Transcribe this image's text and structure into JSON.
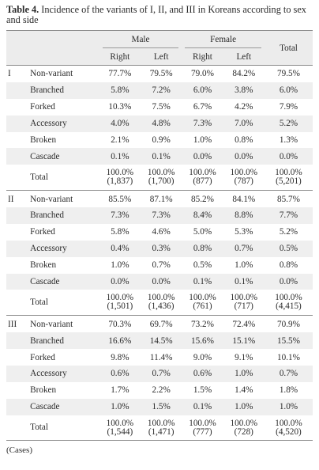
{
  "caption": {
    "label": "Table 4.",
    "text": " Incidence of the variants of I, II, and III in Koreans according to sex and side"
  },
  "headers": {
    "male": "Male",
    "female": "Female",
    "total": "Total",
    "right": "Right",
    "left": "Left"
  },
  "sections": [
    {
      "label": "I",
      "rows": [
        {
          "variant": "Non-variant",
          "m_right": "77.7%",
          "m_left": "79.5%",
          "f_right": "79.0%",
          "f_left": "84.2%",
          "total": "79.5%"
        },
        {
          "variant": "Branched",
          "m_right": "5.8%",
          "m_left": "7.2%",
          "f_right": "6.0%",
          "f_left": "3.8%",
          "total": "6.0%"
        },
        {
          "variant": "Forked",
          "m_right": "10.3%",
          "m_left": "7.5%",
          "f_right": "6.7%",
          "f_left": "4.2%",
          "total": "7.9%"
        },
        {
          "variant": "Accessory",
          "m_right": "4.0%",
          "m_left": "4.8%",
          "f_right": "7.3%",
          "f_left": "7.0%",
          "total": "5.2%"
        },
        {
          "variant": "Broken",
          "m_right": "2.1%",
          "m_left": "0.9%",
          "f_right": "1.0%",
          "f_left": "0.8%",
          "total": "1.3%"
        },
        {
          "variant": "Cascade",
          "m_right": "0.1%",
          "m_left": "0.1%",
          "f_right": "0.0%",
          "f_left": "0.0%",
          "total": "0.0%"
        }
      ],
      "total": {
        "label": "Total",
        "m_right": "100.0%",
        "m_right_n": "(1,837)",
        "m_left": "100.0%",
        "m_left_n": "(1,700)",
        "f_right": "100.0%",
        "f_right_n": "(877)",
        "f_left": "100.0%",
        "f_left_n": "(787)",
        "total": "100.0%",
        "total_n": "(5,201)"
      }
    },
    {
      "label": "II",
      "rows": [
        {
          "variant": "Non-variant",
          "m_right": "85.5%",
          "m_left": "87.1%",
          "f_right": "85.2%",
          "f_left": "84.1%",
          "total": "85.7%"
        },
        {
          "variant": "Branched",
          "m_right": "7.3%",
          "m_left": "7.3%",
          "f_right": "8.4%",
          "f_left": "8.8%",
          "total": "7.7%"
        },
        {
          "variant": "Forked",
          "m_right": "5.8%",
          "m_left": "4.6%",
          "f_right": "5.0%",
          "f_left": "5.3%",
          "total": "5.2%"
        },
        {
          "variant": "Accessory",
          "m_right": "0.4%",
          "m_left": "0.3%",
          "f_right": "0.8%",
          "f_left": "0.7%",
          "total": "0.5%"
        },
        {
          "variant": "Broken",
          "m_right": "1.0%",
          "m_left": "0.7%",
          "f_right": "0.5%",
          "f_left": "1.0%",
          "total": "0.8%"
        },
        {
          "variant": "Cascade",
          "m_right": "0.0%",
          "m_left": "0.0%",
          "f_right": "0.1%",
          "f_left": "0.1%",
          "total": "0.0%"
        }
      ],
      "total": {
        "label": "Total",
        "m_right": "100.0%",
        "m_right_n": "(1,501)",
        "m_left": "100.0%",
        "m_left_n": "(1,436)",
        "f_right": "100.0%",
        "f_right_n": "(761)",
        "f_left": "100.0%",
        "f_left_n": "(717)",
        "total": "100.0%",
        "total_n": "(4,415)"
      }
    },
    {
      "label": "III",
      "rows": [
        {
          "variant": "Non-variant",
          "m_right": "70.3%",
          "m_left": "69.7%",
          "f_right": "73.2%",
          "f_left": "72.4%",
          "total": "70.9%"
        },
        {
          "variant": "Branched",
          "m_right": "16.6%",
          "m_left": "14.5%",
          "f_right": "15.6%",
          "f_left": "15.1%",
          "total": "15.5%"
        },
        {
          "variant": "Forked",
          "m_right": "9.8%",
          "m_left": "11.4%",
          "f_right": "9.0%",
          "f_left": "9.1%",
          "total": "10.1%"
        },
        {
          "variant": "Accessory",
          "m_right": "0.6%",
          "m_left": "0.7%",
          "f_right": "0.6%",
          "f_left": "1.0%",
          "total": "0.7%"
        },
        {
          "variant": "Broken",
          "m_right": "1.7%",
          "m_left": "2.2%",
          "f_right": "1.5%",
          "f_left": "1.4%",
          "total": "1.8%"
        },
        {
          "variant": "Cascade",
          "m_right": "1.0%",
          "m_left": "1.5%",
          "f_right": "0.1%",
          "f_left": "1.0%",
          "total": "1.0%"
        }
      ],
      "total": {
        "label": "Total",
        "m_right": "100.0%",
        "m_right_n": "(1,544)",
        "m_left": "100.0%",
        "m_left_n": "(1,471)",
        "f_right": "100.0%",
        "f_right_n": "(777)",
        "f_left": "100.0%",
        "f_left_n": "(728)",
        "total": "100.0%",
        "total_n": "(4,520)"
      }
    }
  ],
  "footnote": "(Cases)"
}
